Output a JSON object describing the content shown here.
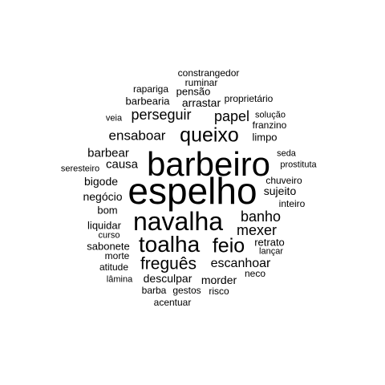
{
  "text_color": "#000000",
  "background": "#ffffff",
  "words": [
    "constrangedor",
    "ruminar",
    "rapariga",
    "pensão",
    "proprietário",
    "barbearia",
    "arrastar",
    "perseguir",
    "papel",
    "solução",
    "veia",
    "franzino",
    "ensaboar",
    "queixo",
    "limpo",
    "barbear",
    "seda",
    "barbeiro",
    "causa",
    "prostituta",
    "seresteiro",
    "chuveiro",
    "bigode",
    "sujeito",
    "negócio",
    "espelho",
    "inteiro",
    "bom",
    "navalha",
    "banho",
    "liquidar",
    "mexer",
    "curso",
    "toalha",
    "feio",
    "retrato",
    "sabonete",
    "lançar",
    "morte",
    "freguês",
    "escanhoar",
    "atitude",
    "neco",
    "lâmina",
    "desculpar",
    "morder",
    "barba",
    "gestos",
    "risco",
    "acentuar"
  ]
}
